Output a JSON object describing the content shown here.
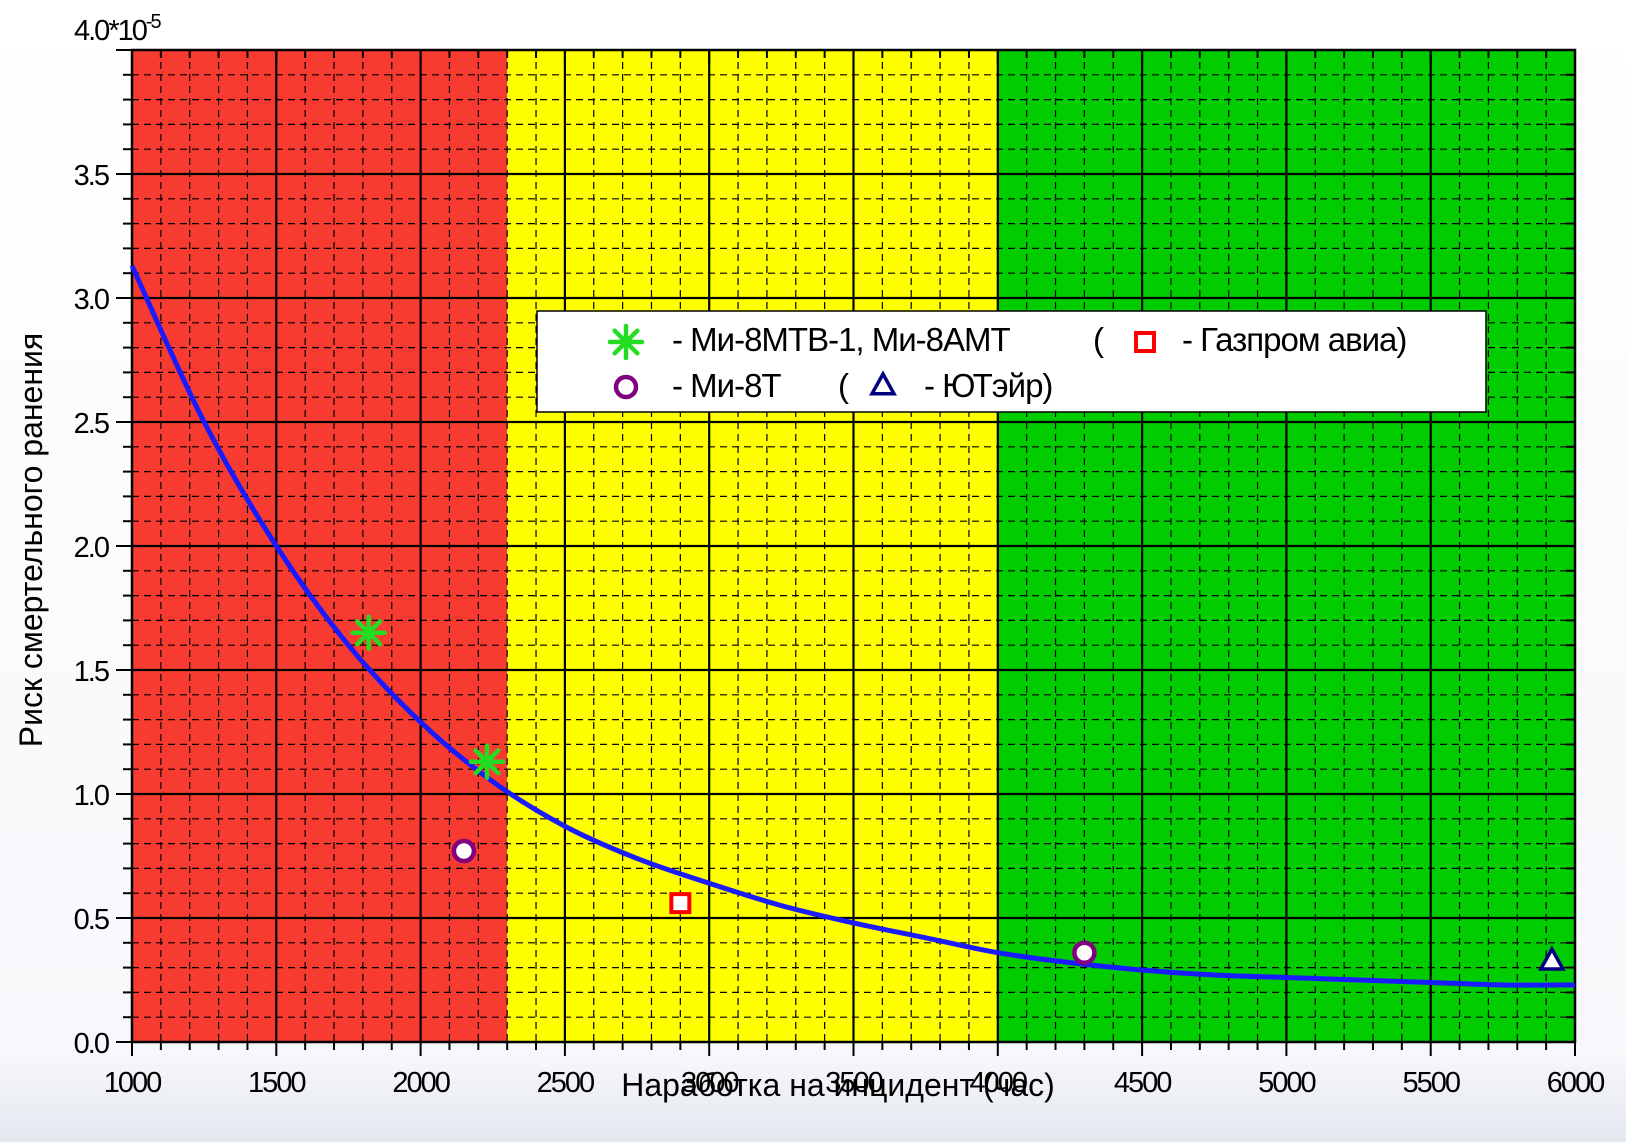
{
  "chart_data": {
    "type": "scatter",
    "title": "",
    "xlabel": "Наработка на инцидент (час)",
    "ylabel": "Риск  смертельного  ранения",
    "y_multiplier_label": "4.0*10",
    "y_multiplier_exponent": "-5",
    "xlim": [
      1000,
      6000
    ],
    "ylim": [
      0,
      4.0
    ],
    "x_ticks": [
      "1000",
      "1500",
      "2000",
      "2500",
      "3000",
      "3500",
      "4000",
      "4500",
      "5000",
      "5500",
      "6000"
    ],
    "y_ticks": [
      "0.0",
      "0.5",
      "1.0",
      "1.5",
      "2.0",
      "2.5",
      "3.0",
      "3.5"
    ],
    "grid": true,
    "zones": [
      {
        "name": "red",
        "x_from": 1000,
        "x_to": 2300,
        "color": "#f73b30"
      },
      {
        "name": "yellow",
        "x_from": 2300,
        "x_to": 4000,
        "color": "#ffff00"
      },
      {
        "name": "green",
        "x_from": 4000,
        "x_to": 6000,
        "color": "#00cc00"
      }
    ],
    "curve": {
      "color": "#1a1aff",
      "x": [
        1000,
        1250,
        1500,
        1750,
        2000,
        2250,
        2500,
        2750,
        3000,
        3250,
        3500,
        3750,
        4000,
        4250,
        4500,
        4750,
        5000,
        5250,
        5500,
        5750,
        6000
      ],
      "y": [
        3.13,
        2.5,
        2.0,
        1.6,
        1.29,
        1.05,
        0.87,
        0.74,
        0.64,
        0.55,
        0.48,
        0.42,
        0.36,
        0.32,
        0.29,
        0.27,
        0.26,
        0.25,
        0.24,
        0.23,
        0.23
      ]
    },
    "series": [
      {
        "marker": "asterisk",
        "color": "#22dd22",
        "points": [
          {
            "x": 1820,
            "y": 1.65
          },
          {
            "x": 2230,
            "y": 1.13
          }
        ]
      },
      {
        "marker": "circle",
        "color": "#800080",
        "points": [
          {
            "x": 2150,
            "y": 0.77
          },
          {
            "x": 4300,
            "y": 0.36
          }
        ]
      },
      {
        "marker": "square",
        "color": "#ff0000",
        "points": [
          {
            "x": 2900,
            "y": 0.56
          }
        ]
      },
      {
        "marker": "triangle",
        "color": "#000080",
        "points": [
          {
            "x": 5920,
            "y": 0.33
          }
        ]
      }
    ],
    "legend": {
      "placement": "top-center",
      "row1": {
        "text_a": "- Ми-8МТВ-1, Ми-8АМТ",
        "paren_open": "(",
        "text_b": "- Газпром авиа)"
      },
      "row2": {
        "text_a": "- Ми-8Т",
        "paren_open": "(",
        "text_b": "- ЮТэйр)"
      }
    }
  }
}
